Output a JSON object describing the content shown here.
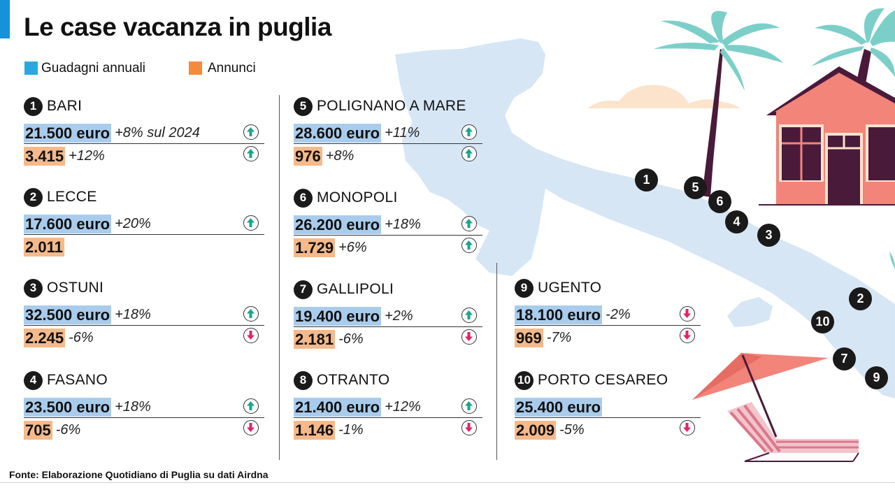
{
  "title": "Le case vacanza in puglia",
  "legend": [
    {
      "label": "Guadagni annuali",
      "color": "#29a8e0"
    },
    {
      "label": "Annunci",
      "color": "#f58a3b"
    }
  ],
  "colors": {
    "up": "#1aa58a",
    "down": "#e0246b",
    "blue_bar": "#a9ccec",
    "orange_bar": "#f5b98a"
  },
  "chart_data": {
    "type": "table",
    "title": "Le case vacanza in puglia",
    "columns": [
      "rank",
      "city",
      "guadagni_annuali",
      "guadagni_change",
      "annunci",
      "annunci_change"
    ],
    "cities": [
      {
        "rank": "1",
        "name": "BARI",
        "earnings": "21.500 euro",
        "earnings_change": "+8% sul 2024",
        "earnings_dir": "up",
        "listings": "3.415",
        "listings_change": "+12%",
        "listings_dir": "up"
      },
      {
        "rank": "2",
        "name": "LECCE",
        "earnings": "17.600 euro",
        "earnings_change": "+20%",
        "earnings_dir": "up",
        "listings": "2.011",
        "listings_change": "",
        "listings_dir": ""
      },
      {
        "rank": "3",
        "name": "OSTUNI",
        "earnings": "32.500 euro",
        "earnings_change": "+18%",
        "earnings_dir": "up",
        "listings": "2.245",
        "listings_change": "-6%",
        "listings_dir": "down"
      },
      {
        "rank": "4",
        "name": "FASANO",
        "earnings": "23.500 euro",
        "earnings_change": "+18%",
        "earnings_dir": "up",
        "listings": "705",
        "listings_change": "-6%",
        "listings_dir": "down"
      },
      {
        "rank": "5",
        "name": "POLIGNANO A MARE",
        "earnings": "28.600 euro",
        "earnings_change": "+11%",
        "earnings_dir": "up",
        "listings": "976",
        "listings_change": "+8%",
        "listings_dir": "up"
      },
      {
        "rank": "6",
        "name": "MONOPOLI",
        "earnings": "26.200 euro",
        "earnings_change": "+18%",
        "earnings_dir": "up",
        "listings": "1.729",
        "listings_change": "+6%",
        "listings_dir": "up"
      },
      {
        "rank": "7",
        "name": "GALLIPOLI",
        "earnings": "19.400 euro",
        "earnings_change": "+2%",
        "earnings_dir": "up",
        "listings": "2.181",
        "listings_change": "-6%",
        "listings_dir": "down"
      },
      {
        "rank": "8",
        "name": "OTRANTO",
        "earnings": "21.400 euro",
        "earnings_change": "+12%",
        "earnings_dir": "up",
        "listings": "1.146",
        "listings_change": "-1%",
        "listings_dir": "down"
      },
      {
        "rank": "9",
        "name": "UGENTO",
        "earnings": "18.100 euro",
        "earnings_change": "-2%",
        "earnings_dir": "down",
        "listings": "969",
        "listings_change": "-7%",
        "listings_dir": "down"
      },
      {
        "rank": "10",
        "name": "PORTO CESAREO",
        "earnings": "25.400 euro",
        "earnings_change": "",
        "earnings_dir": "",
        "listings": "2.009",
        "listings_change": "-5%",
        "listings_dir": "down"
      }
    ]
  },
  "map_markers": [
    "1",
    "5",
    "6",
    "4",
    "3",
    "2",
    "10",
    "7",
    "9"
  ],
  "footer": "Fonte: Elaborazione Quotidiano di Puglia su dati Airdna"
}
